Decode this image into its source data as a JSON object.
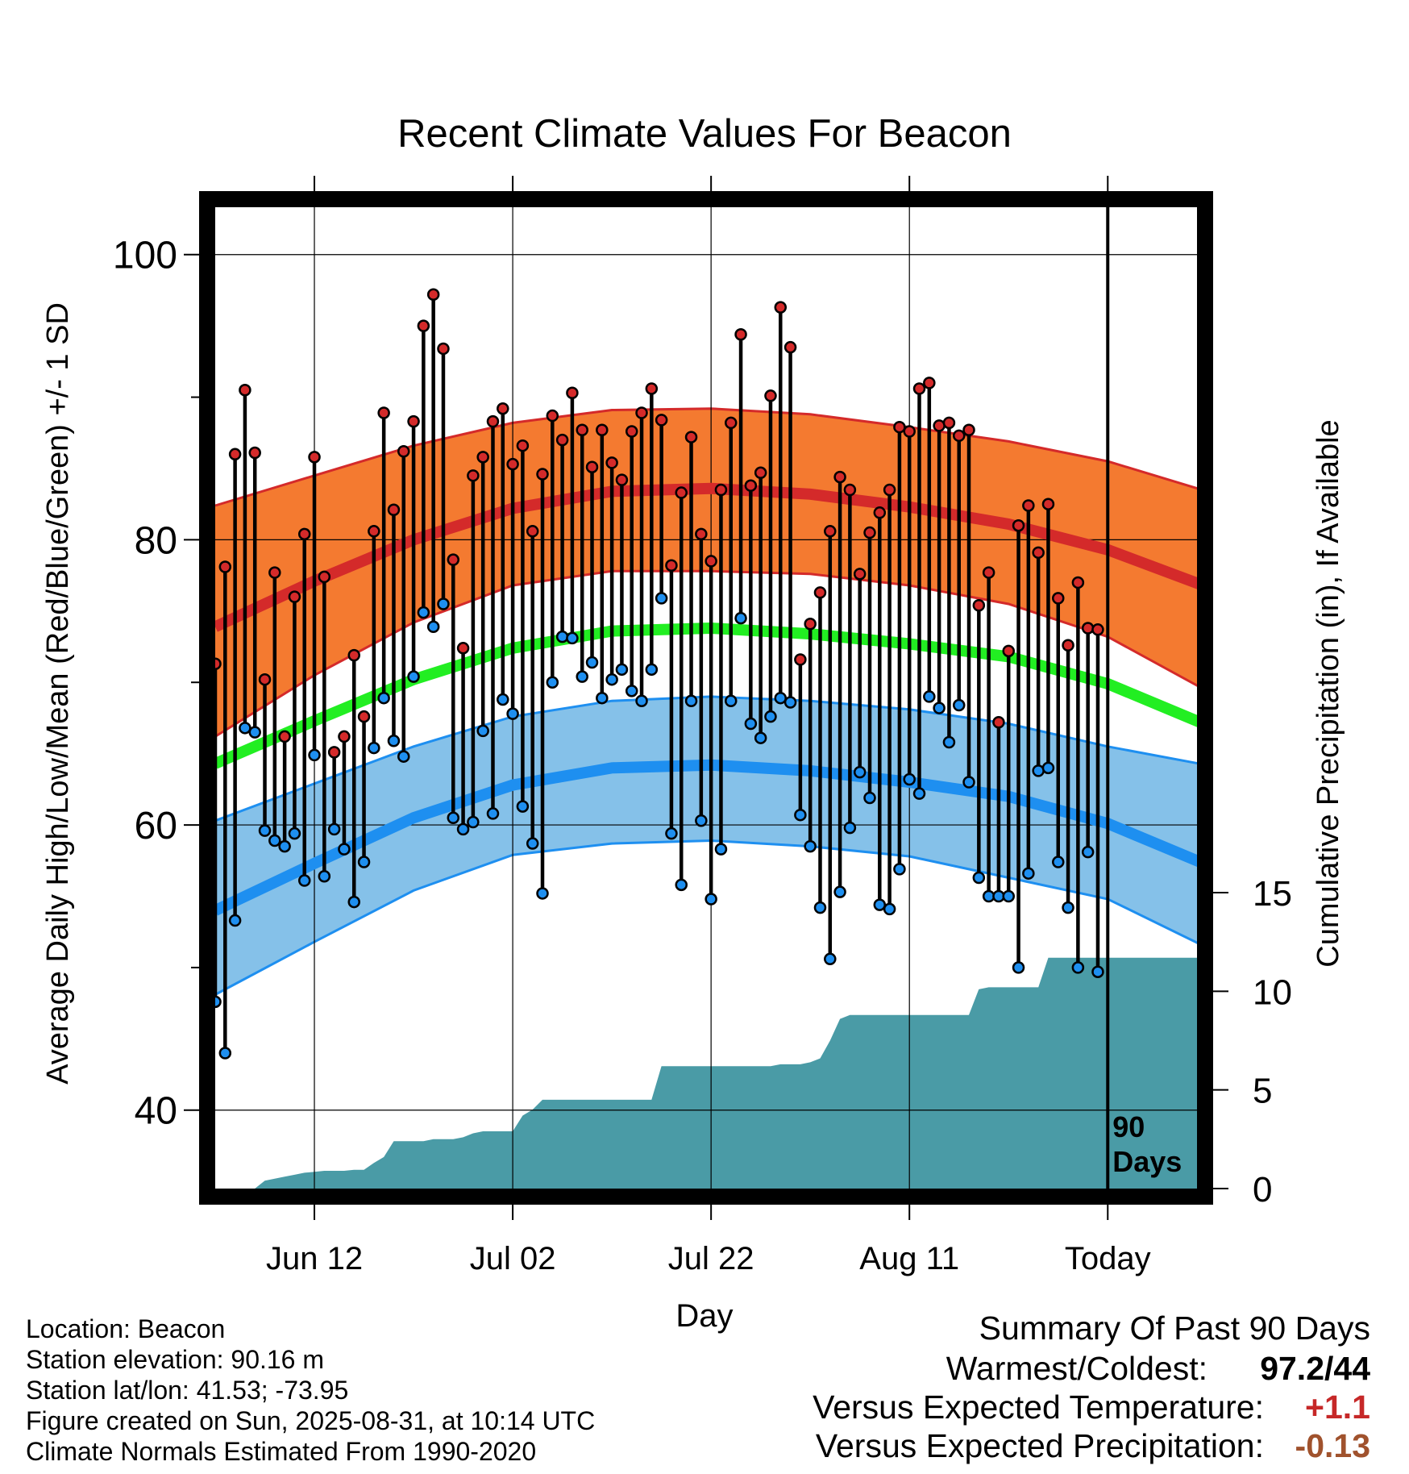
{
  "title": "Recent Climate Values For Beacon",
  "footer": {
    "location": "Location: Beacon",
    "elevation": "Station elevation: 90.16 m",
    "latlon": "Station lat/lon: 41.53; -73.95",
    "created": "Figure created on Sun, 2025-08-31, at 10:14 UTC",
    "normals": "Climate Normals Estimated From 1990-2020"
  },
  "summary": {
    "title": "Summary Of Past 90 Days",
    "warm_cold_label": "Warmest/Coldest:",
    "warm_cold_value": "97.2/44",
    "temp_label": "Versus Expected Temperature:",
    "temp_value": "+1.1",
    "temp_color": "#c62828",
    "precip_label": "Versus Expected Precipitation:",
    "precip_value": "-0.13",
    "precip_color": "#a0522d"
  },
  "chart_data": {
    "type": "line",
    "title": "Recent Climate Values For Beacon",
    "xlabel": "Day",
    "ylabel": "Average Daily High/Low/Mean (Red/Blue/Green) +/- 1 SD",
    "y2label": "Cumulative Precipitation (in), If Available",
    "x_tick_labels": [
      "Jun 12",
      "Jul 02",
      "Jul 22",
      "Aug 11",
      "Today"
    ],
    "x_tick_days": [
      11,
      31,
      51,
      71,
      91
    ],
    "ylim": [
      34.5,
      104
    ],
    "y_ticks": [
      40,
      60,
      80,
      100
    ],
    "y2_ticks": [
      0,
      5,
      10,
      15
    ],
    "y2_max": 15,
    "days_label": "90 Days",
    "grid": true,
    "colors": {
      "high_band": "#f47a30",
      "high_line": "#d42a2a",
      "low_band": "#85c1e9",
      "low_line": "#1e8ff0",
      "mean_line": "#22ee22",
      "precip": "#4a9ba6",
      "high_dot": "#d42a2a",
      "low_dot": "#1e8ff0"
    },
    "normals": {
      "x": [
        0,
        10,
        20,
        30,
        40,
        50,
        60,
        70,
        80,
        90,
        100
      ],
      "high_mean": [
        73.9,
        77.1,
        80.0,
        82.2,
        83.4,
        83.6,
        83.2,
        82.3,
        81.1,
        79.3,
        76.7
      ],
      "high_plus_sd": [
        82.4,
        84.5,
        86.6,
        88.2,
        89.1,
        89.2,
        88.8,
        87.9,
        86.9,
        85.5,
        83.4
      ],
      "high_minus_sd": [
        66.2,
        70.5,
        74.2,
        76.8,
        77.8,
        77.8,
        77.6,
        76.8,
        75.5,
        73.2,
        69.4
      ],
      "mean": [
        64.3,
        67.3,
        70.2,
        72.4,
        73.6,
        73.8,
        73.4,
        72.7,
        71.8,
        69.9,
        67.0
      ],
      "low_mean": [
        54.0,
        57.3,
        60.5,
        62.8,
        64.0,
        64.2,
        63.8,
        63.0,
        62.0,
        60.1,
        57.2
      ],
      "low_plus_sd": [
        60.3,
        62.9,
        65.5,
        67.6,
        68.7,
        69.0,
        68.7,
        68.1,
        67.1,
        65.5,
        64.2
      ],
      "low_minus_sd": [
        48.1,
        51.8,
        55.4,
        57.9,
        58.7,
        58.9,
        58.5,
        57.8,
        56.3,
        54.8,
        51.4
      ]
    },
    "daily": {
      "day": [
        1,
        2,
        3,
        4,
        5,
        6,
        7,
        8,
        9,
        10,
        11,
        12,
        13,
        14,
        15,
        16,
        17,
        18,
        19,
        20,
        21,
        22,
        23,
        24,
        25,
        26,
        27,
        28,
        29,
        30,
        31,
        32,
        33,
        34,
        35,
        36,
        37,
        38,
        39,
        40,
        41,
        42,
        43,
        44,
        45,
        46,
        47,
        48,
        49,
        50,
        51,
        52,
        53,
        54,
        55,
        56,
        57,
        58,
        59,
        60,
        61,
        62,
        63,
        64,
        65,
        66,
        67,
        68,
        69,
        70,
        71,
        72,
        73,
        74,
        75,
        76,
        77,
        78,
        79,
        80,
        81,
        82,
        83,
        84,
        85,
        86,
        87,
        88,
        89,
        90
      ],
      "high": [
        71.3,
        78.1,
        86.0,
        90.5,
        86.1,
        70.2,
        77.7,
        66.2,
        76.0,
        80.4,
        85.8,
        77.4,
        65.1,
        66.2,
        71.9,
        67.6,
        80.6,
        88.9,
        82.1,
        86.2,
        88.3,
        95.0,
        97.2,
        93.4,
        78.6,
        72.4,
        84.5,
        85.8,
        88.3,
        89.2,
        85.3,
        86.6,
        80.6,
        84.6,
        88.7,
        87.0,
        90.3,
        87.7,
        85.1,
        87.7,
        85.4,
        84.2,
        87.6,
        88.9,
        90.6,
        88.4,
        78.2,
        83.3,
        87.2,
        80.4,
        78.5,
        83.5,
        88.2,
        94.4,
        83.8,
        84.7,
        90.1,
        96.3,
        93.5,
        71.6,
        74.1,
        76.3,
        80.6,
        84.4,
        83.5,
        77.6,
        80.5,
        81.9,
        83.5,
        87.9,
        87.6,
        90.6,
        91.0,
        88.0,
        88.2,
        87.3,
        87.7,
        75.4,
        77.7,
        67.2,
        72.2,
        81.0,
        82.4,
        79.1,
        82.5,
        75.9,
        72.6,
        77.0,
        73.8,
        73.7
      ],
      "low": [
        47.6,
        44.0,
        53.3,
        66.8,
        66.5,
        59.6,
        58.9,
        58.5,
        59.4,
        56.1,
        64.9,
        56.4,
        59.7,
        58.3,
        54.6,
        57.4,
        65.4,
        68.9,
        65.9,
        64.8,
        70.4,
        74.9,
        73.9,
        75.5,
        60.5,
        59.7,
        60.2,
        66.6,
        60.8,
        68.8,
        67.8,
        61.3,
        58.7,
        55.2,
        70.0,
        73.2,
        73.1,
        70.4,
        71.4,
        68.9,
        70.2,
        70.9,
        69.4,
        68.7,
        70.9,
        75.9,
        59.4,
        55.8,
        68.7,
        60.3,
        54.8,
        58.3,
        68.7,
        74.5,
        67.1,
        66.1,
        67.6,
        68.9,
        68.6,
        60.7,
        58.5,
        54.2,
        50.6,
        55.3,
        59.8,
        63.7,
        61.9,
        54.4,
        54.1,
        56.9,
        63.2,
        62.2,
        69.0,
        68.2,
        65.8,
        68.4,
        63.0,
        56.3,
        55.0,
        55.0,
        55.0,
        50.0,
        56.6,
        63.8,
        64.0,
        57.4,
        54.2,
        50.0,
        58.1,
        49.7
      ]
    },
    "precip": {
      "x": [
        0,
        4,
        5,
        6,
        7,
        8,
        9,
        10,
        11,
        12,
        13,
        14,
        15,
        16,
        17,
        18,
        19,
        20,
        21,
        22,
        23,
        24,
        25,
        26,
        27,
        28,
        29,
        30,
        31,
        32,
        33,
        34,
        35,
        36,
        37,
        38,
        39,
        40,
        41,
        42,
        43,
        44,
        45,
        46,
        47,
        48,
        49,
        50,
        51,
        52,
        53,
        54,
        55,
        56,
        57,
        58,
        59,
        60,
        61,
        62,
        63,
        64,
        65,
        66,
        67,
        68,
        69,
        70,
        71,
        72,
        73,
        74,
        75,
        76,
        77,
        78,
        79,
        80,
        81,
        82,
        83,
        84,
        85,
        86,
        87,
        88,
        89,
        90,
        91,
        92,
        93,
        94,
        95,
        96,
        97,
        98,
        99,
        100
      ],
      "cum": [
        0,
        0,
        0.4,
        0.5,
        0.6,
        0.7,
        0.8,
        0.85,
        0.9,
        0.9,
        0.9,
        0.95,
        0.95,
        1.3,
        1.6,
        2.4,
        2.4,
        2.4,
        2.4,
        2.5,
        2.5,
        2.5,
        2.6,
        2.8,
        2.9,
        2.9,
        2.9,
        2.9,
        3.7,
        4.0,
        4.5,
        4.5,
        4.5,
        4.5,
        4.5,
        4.5,
        4.5,
        4.5,
        4.5,
        4.5,
        4.5,
        4.5,
        6.2,
        6.2,
        6.2,
        6.2,
        6.2,
        6.2,
        6.2,
        6.2,
        6.2,
        6.2,
        6.2,
        6.2,
        6.3,
        6.3,
        6.3,
        6.4,
        6.6,
        7.5,
        8.6,
        8.8,
        8.8,
        8.8,
        8.8,
        8.8,
        8.8,
        8.8,
        8.8,
        8.8,
        8.8,
        8.8,
        8.8,
        8.8,
        10.1,
        10.2,
        10.2,
        10.2,
        10.2,
        10.2,
        10.2,
        11.7,
        11.7,
        11.7,
        11.7,
        11.7,
        11.7,
        11.7,
        11.7,
        11.7,
        11.7,
        11.7,
        11.7,
        11.7,
        11.7,
        11.7,
        11.7,
        11.7
      ]
    }
  }
}
